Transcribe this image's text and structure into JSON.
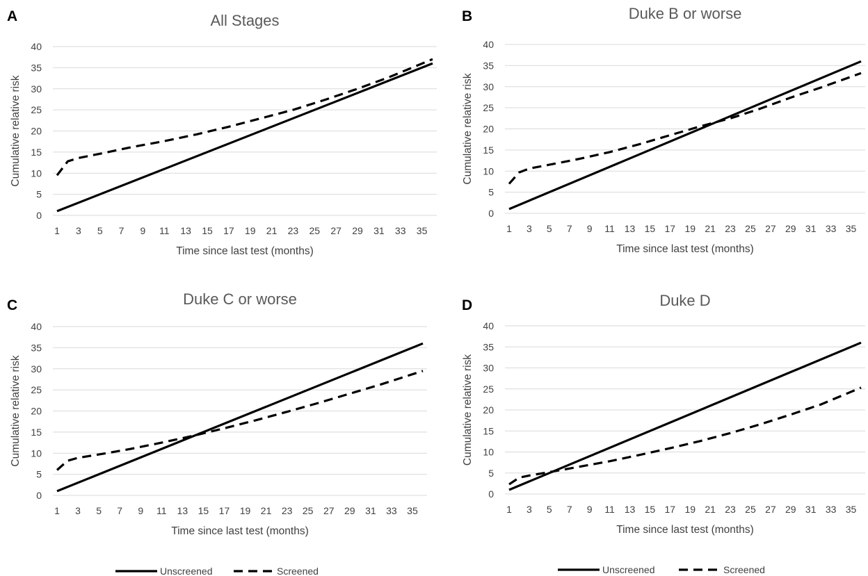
{
  "legend_left": {
    "unscreened": "Unscreened",
    "screened": "Screened"
  },
  "legend_right": {
    "unscreened": "Unscreened",
    "screened": "Screened"
  },
  "chart_data": [
    {
      "panel": "A",
      "type": "line",
      "title": "All Stages",
      "xlabel": "Time since last test (months)",
      "ylabel": "Cumulative relative risk",
      "ylim": [
        0,
        40
      ],
      "yticks": [
        0,
        5,
        10,
        15,
        20,
        25,
        30,
        35,
        40
      ],
      "xlim": [
        1,
        36
      ],
      "xticks": [
        1,
        3,
        5,
        7,
        9,
        11,
        13,
        15,
        17,
        19,
        21,
        23,
        25,
        27,
        29,
        31,
        33,
        35
      ],
      "grid": true,
      "series": [
        {
          "name": "Unscreened",
          "style": "solid",
          "x": [
            1,
            36
          ],
          "y": [
            1,
            36
          ]
        },
        {
          "name": "Screened",
          "style": "dashed",
          "x": [
            1,
            2,
            3,
            5,
            8,
            11,
            14,
            17,
            20,
            23,
            26,
            29,
            32,
            36
          ],
          "y": [
            9.5,
            12.8,
            13.6,
            14.6,
            16.2,
            17.6,
            19.2,
            21.0,
            23.0,
            25.0,
            27.4,
            30.0,
            32.8,
            37.0
          ]
        }
      ]
    },
    {
      "panel": "B",
      "type": "line",
      "title": "Duke B or worse",
      "xlabel": "Time since last test (months)",
      "ylabel": "Cumulative relative risk",
      "ylim": [
        0,
        40
      ],
      "yticks": [
        0,
        5,
        10,
        15,
        20,
        25,
        30,
        35,
        40
      ],
      "xlim": [
        1,
        36
      ],
      "xticks": [
        1,
        3,
        5,
        7,
        9,
        11,
        13,
        15,
        17,
        19,
        21,
        23,
        25,
        27,
        29,
        31,
        33,
        35
      ],
      "grid": true,
      "series": [
        {
          "name": "Unscreened",
          "style": "solid",
          "x": [
            1,
            36
          ],
          "y": [
            1,
            36
          ]
        },
        {
          "name": "Screened",
          "style": "dashed",
          "x": [
            1,
            2,
            3,
            5,
            8,
            11,
            14,
            17,
            20,
            23,
            26,
            29,
            32,
            36
          ],
          "y": [
            7.0,
            9.7,
            10.6,
            11.5,
            12.9,
            14.5,
            16.4,
            18.5,
            20.6,
            22.5,
            24.8,
            27.4,
            29.8,
            33.2
          ]
        }
      ]
    },
    {
      "panel": "C",
      "type": "line",
      "title": "Duke C or worse",
      "xlabel": "Time since last test (months)",
      "ylabel": "Cumulative relative risk",
      "ylim": [
        0,
        40
      ],
      "yticks": [
        0,
        5,
        10,
        15,
        20,
        25,
        30,
        35,
        40
      ],
      "xlim": [
        1,
        36
      ],
      "xticks": [
        1,
        3,
        5,
        7,
        9,
        11,
        13,
        15,
        17,
        19,
        21,
        23,
        25,
        27,
        29,
        31,
        33,
        35
      ],
      "grid": true,
      "series": [
        {
          "name": "Unscreened",
          "style": "solid",
          "x": [
            1,
            36
          ],
          "y": [
            1,
            36
          ]
        },
        {
          "name": "Screened",
          "style": "dashed",
          "x": [
            1,
            2,
            3,
            5,
            8,
            11,
            14,
            17,
            20,
            23,
            26,
            29,
            32,
            36
          ],
          "y": [
            6.0,
            8.2,
            8.9,
            9.7,
            11.0,
            12.5,
            14.1,
            15.9,
            17.8,
            19.8,
            21.9,
            24.1,
            26.3,
            29.5
          ]
        }
      ]
    },
    {
      "panel": "D",
      "type": "line",
      "title": "Duke D",
      "xlabel": "Time since last test (months)",
      "ylabel": "Cumulative relative risk",
      "ylim": [
        0,
        40
      ],
      "yticks": [
        0,
        5,
        10,
        15,
        20,
        25,
        30,
        35,
        40
      ],
      "xlim": [
        1,
        36
      ],
      "xticks": [
        1,
        3,
        5,
        7,
        9,
        11,
        13,
        15,
        17,
        19,
        21,
        23,
        25,
        27,
        29,
        31,
        33,
        35
      ],
      "grid": true,
      "series": [
        {
          "name": "Unscreened",
          "style": "solid",
          "x": [
            1,
            36
          ],
          "y": [
            1,
            36
          ]
        },
        {
          "name": "Screened",
          "style": "dashed",
          "x": [
            1,
            2,
            3,
            5,
            8,
            11,
            14,
            17,
            20,
            23,
            26,
            29,
            32,
            36
          ],
          "y": [
            2.3,
            3.9,
            4.4,
            5.2,
            6.5,
            7.8,
            9.3,
            10.9,
            12.6,
            14.5,
            16.6,
            18.9,
            21.3,
            25.3
          ]
        }
      ]
    }
  ]
}
